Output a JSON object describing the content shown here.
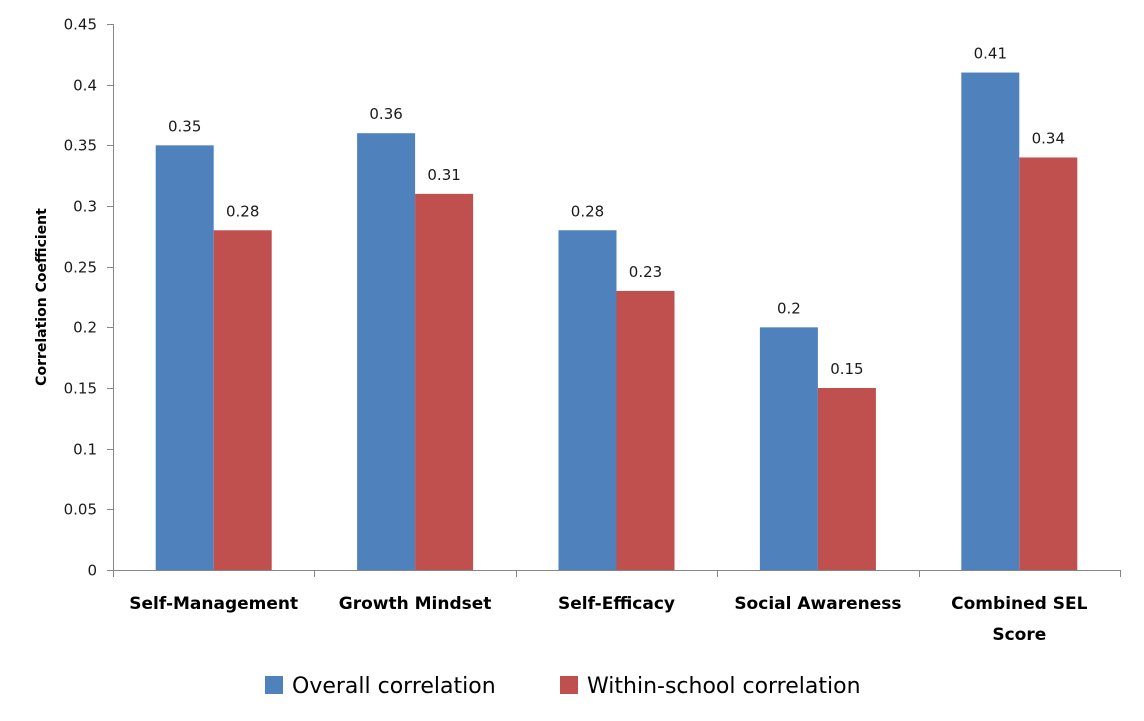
{
  "chart_data": {
    "type": "bar",
    "title": "",
    "xlabel": "",
    "ylabel": "Correlation Coefficient",
    "ylim": [
      0,
      0.45
    ],
    "yticks": [
      0,
      0.05,
      0.1,
      0.15,
      0.2,
      0.25,
      0.3,
      0.35,
      0.4,
      0.45
    ],
    "ytick_labels": [
      "0",
      "0.05",
      "0.1",
      "0.15",
      "0.2",
      "0.25",
      "0.3",
      "0.35",
      "0.4",
      "0.45"
    ],
    "grid": false,
    "categories": [
      [
        "Self-Management"
      ],
      [
        "Growth Mindset"
      ],
      [
        "Self-Efficacy"
      ],
      [
        "Social Awareness"
      ],
      [
        "Combined SEL",
        "Score"
      ]
    ],
    "series": [
      {
        "name": "Overall correlation",
        "color": "#4F81BD",
        "values": [
          0.35,
          0.36,
          0.28,
          0.2,
          0.41
        ],
        "labels": [
          "0.35",
          "0.36",
          "0.28",
          "0.2",
          "0.41"
        ]
      },
      {
        "name": "Within-school correlation",
        "color": "#C0504D",
        "values": [
          0.28,
          0.31,
          0.23,
          0.15,
          0.34
        ],
        "labels": [
          "0.28",
          "0.31",
          "0.23",
          "0.15",
          "0.34"
        ]
      }
    ],
    "legend": "bottom",
    "data_labels": true
  }
}
